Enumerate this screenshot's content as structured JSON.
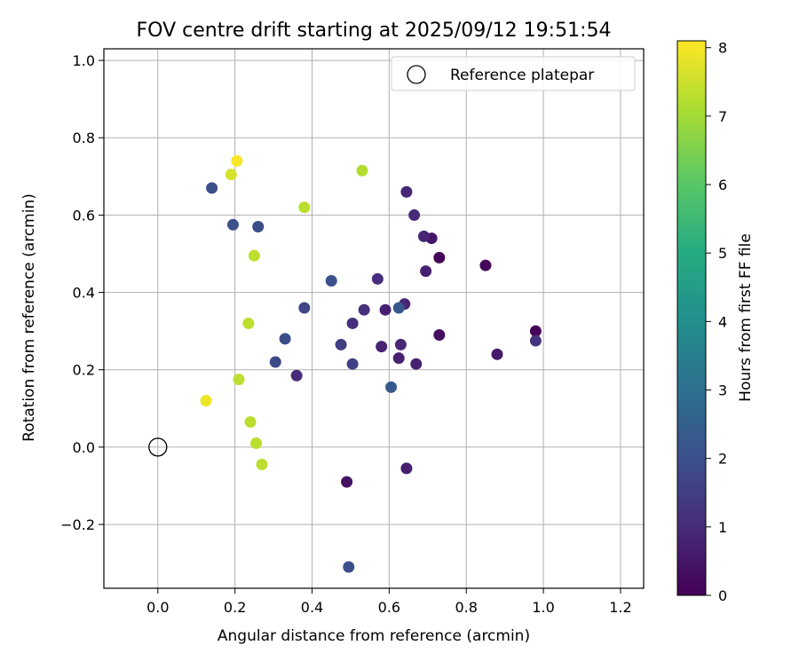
{
  "chart_data": {
    "type": "scatter",
    "title": "FOV centre drift starting at 2025/09/12 19:51:54",
    "xlabel": "Angular distance from reference (arcmin)",
    "ylabel": "Rotation from reference (arcmin)",
    "xlim": [
      -0.14,
      1.26
    ],
    "ylim": [
      -0.365,
      1.03
    ],
    "xticks": [
      0.0,
      0.2,
      0.4,
      0.6,
      0.8,
      1.0,
      1.2
    ],
    "xtick_labels": [
      "0.0",
      "0.2",
      "0.4",
      "0.6",
      "0.8",
      "1.0",
      "1.2"
    ],
    "yticks": [
      -0.2,
      0.0,
      0.2,
      0.4,
      0.6,
      0.8,
      1.0
    ],
    "ytick_labels": [
      "−0.2",
      "0.0",
      "0.2",
      "0.4",
      "0.6",
      "0.8",
      "1.0"
    ],
    "grid": true,
    "legend": {
      "placement": "top-right",
      "entries": [
        "Reference platepar"
      ]
    },
    "reference_point": {
      "x": 0.0,
      "y": 0.0
    },
    "colorbar": {
      "label": "Hours from first FF file",
      "min": 0,
      "max": 8.1,
      "ticks": [
        0,
        1,
        2,
        3,
        4,
        5,
        6,
        7,
        8
      ],
      "tick_labels": [
        "0",
        "1",
        "2",
        "3",
        "4",
        "5",
        "6",
        "7",
        "8"
      ],
      "colormap": "viridis"
    },
    "points": [
      {
        "x": 0.98,
        "y": 0.3,
        "hours": 0.05
      },
      {
        "x": 0.73,
        "y": 0.49,
        "hours": 0.1
      },
      {
        "x": 0.85,
        "y": 0.47,
        "hours": 0.15
      },
      {
        "x": 0.73,
        "y": 0.29,
        "hours": 0.3
      },
      {
        "x": 0.49,
        "y": -0.09,
        "hours": 0.4
      },
      {
        "x": 0.71,
        "y": 0.54,
        "hours": 0.5
      },
      {
        "x": 0.88,
        "y": 0.24,
        "hours": 0.6
      },
      {
        "x": 0.59,
        "y": 0.355,
        "hours": 0.7
      },
      {
        "x": 0.645,
        "y": -0.055,
        "hours": 0.7
      },
      {
        "x": 0.625,
        "y": 0.23,
        "hours": 0.75
      },
      {
        "x": 0.67,
        "y": 0.215,
        "hours": 0.8
      },
      {
        "x": 0.695,
        "y": 0.455,
        "hours": 0.8
      },
      {
        "x": 0.58,
        "y": 0.26,
        "hours": 0.85
      },
      {
        "x": 0.69,
        "y": 0.545,
        "hours": 0.85
      },
      {
        "x": 0.645,
        "y": 0.66,
        "hours": 0.9
      },
      {
        "x": 0.64,
        "y": 0.37,
        "hours": 0.9
      },
      {
        "x": 0.63,
        "y": 0.265,
        "hours": 0.95
      },
      {
        "x": 0.665,
        "y": 0.6,
        "hours": 1.0
      },
      {
        "x": 0.36,
        "y": 0.185,
        "hours": 1.0
      },
      {
        "x": 0.57,
        "y": 0.435,
        "hours": 1.05
      },
      {
        "x": 0.535,
        "y": 0.355,
        "hours": 1.1
      },
      {
        "x": 0.505,
        "y": 0.32,
        "hours": 1.1
      },
      {
        "x": 0.98,
        "y": 0.275,
        "hours": 1.2
      },
      {
        "x": 0.475,
        "y": 0.265,
        "hours": 1.5
      },
      {
        "x": 0.505,
        "y": 0.215,
        "hours": 1.6
      },
      {
        "x": 0.38,
        "y": 0.36,
        "hours": 1.7
      },
      {
        "x": 0.305,
        "y": 0.22,
        "hours": 1.8
      },
      {
        "x": 0.33,
        "y": 0.28,
        "hours": 1.9
      },
      {
        "x": 0.26,
        "y": 0.57,
        "hours": 1.9
      },
      {
        "x": 0.45,
        "y": 0.43,
        "hours": 2.0
      },
      {
        "x": 0.195,
        "y": 0.575,
        "hours": 2.0
      },
      {
        "x": 0.14,
        "y": 0.67,
        "hours": 2.0
      },
      {
        "x": 0.495,
        "y": -0.31,
        "hours": 2.0
      },
      {
        "x": 0.625,
        "y": 0.36,
        "hours": 2.2
      },
      {
        "x": 0.605,
        "y": 0.155,
        "hours": 2.3
      },
      {
        "x": 0.53,
        "y": 0.715,
        "hours": 7.2
      },
      {
        "x": 0.38,
        "y": 0.62,
        "hours": 7.3
      },
      {
        "x": 0.25,
        "y": 0.495,
        "hours": 7.3
      },
      {
        "x": 0.235,
        "y": 0.32,
        "hours": 7.3
      },
      {
        "x": 0.21,
        "y": 0.175,
        "hours": 7.3
      },
      {
        "x": 0.24,
        "y": 0.065,
        "hours": 7.3
      },
      {
        "x": 0.255,
        "y": 0.01,
        "hours": 7.3
      },
      {
        "x": 0.27,
        "y": -0.045,
        "hours": 7.3
      },
      {
        "x": 0.19,
        "y": 0.705,
        "hours": 7.6
      },
      {
        "x": 0.125,
        "y": 0.12,
        "hours": 7.9
      },
      {
        "x": 0.205,
        "y": 0.74,
        "hours": 8.05
      }
    ]
  }
}
